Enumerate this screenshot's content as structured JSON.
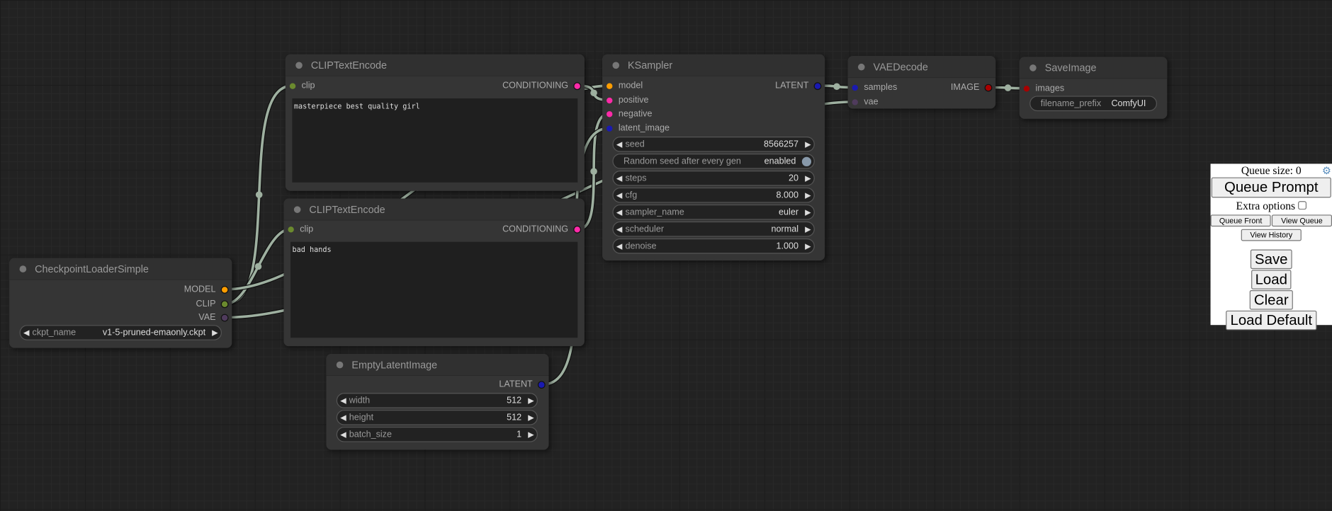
{
  "colors": {
    "clip": "#6b8a2e",
    "conditioning": "#ff2aa8",
    "model": "#ff9d00",
    "vae": "#4f3b5c",
    "latent": "#1a1ab0",
    "image": "#a80000",
    "link": "#9eb0a0"
  },
  "nodes": [
    {
      "id": "checkpoint",
      "title": "CheckpointLoaderSimple",
      "inputs": [],
      "outputs": [
        {
          "name": "MODEL",
          "type": "model"
        },
        {
          "name": "CLIP",
          "type": "clip"
        },
        {
          "name": "VAE",
          "type": "vae"
        }
      ],
      "widgets": [
        {
          "label": "ckpt_name",
          "value": "v1-5-pruned-emaonly.ckpt"
        }
      ]
    },
    {
      "id": "clip-pos",
      "title": "CLIPTextEncode",
      "inputs": [
        {
          "name": "clip",
          "type": "clip"
        }
      ],
      "outputs": [
        {
          "name": "CONDITIONING",
          "type": "conditioning"
        }
      ],
      "text": "masterpiece best quality girl",
      "widgets": []
    },
    {
      "id": "clip-neg",
      "title": "CLIPTextEncode",
      "inputs": [
        {
          "name": "clip",
          "type": "clip"
        }
      ],
      "outputs": [
        {
          "name": "CONDITIONING",
          "type": "conditioning"
        }
      ],
      "text": "bad hands",
      "widgets": []
    },
    {
      "id": "empty-latent",
      "title": "EmptyLatentImage",
      "inputs": [],
      "outputs": [
        {
          "name": "LATENT",
          "type": "latent"
        }
      ],
      "widgets": [
        {
          "label": "width",
          "value": "512"
        },
        {
          "label": "height",
          "value": "512"
        },
        {
          "label": "batch_size",
          "value": "1"
        }
      ]
    },
    {
      "id": "ksampler",
      "title": "KSampler",
      "inputs": [
        {
          "name": "model",
          "type": "model"
        },
        {
          "name": "positive",
          "type": "conditioning"
        },
        {
          "name": "negative",
          "type": "conditioning"
        },
        {
          "name": "latent_image",
          "type": "latent"
        }
      ],
      "outputs": [
        {
          "name": "LATENT",
          "type": "latent"
        }
      ],
      "widgets": [
        {
          "label": "seed",
          "value": "8566257"
        },
        {
          "label": "Random seed after every gen",
          "value": "enabled",
          "toggle": true
        },
        {
          "label": "steps",
          "value": "20"
        },
        {
          "label": "cfg",
          "value": "8.000"
        },
        {
          "label": "sampler_name",
          "value": "euler"
        },
        {
          "label": "scheduler",
          "value": "normal"
        },
        {
          "label": "denoise",
          "value": "1.000"
        }
      ]
    },
    {
      "id": "vae-decode",
      "title": "VAEDecode",
      "inputs": [
        {
          "name": "samples",
          "type": "latent"
        },
        {
          "name": "vae",
          "type": "vae"
        }
      ],
      "outputs": [
        {
          "name": "IMAGE",
          "type": "image"
        }
      ],
      "widgets": []
    },
    {
      "id": "save-image",
      "title": "SaveImage",
      "inputs": [
        {
          "name": "images",
          "type": "image"
        }
      ],
      "outputs": [],
      "widgets": [
        {
          "label": "filename_prefix",
          "value": "ComfyUI",
          "text": true
        }
      ]
    }
  ],
  "panel": {
    "queue_size_label": "Queue size: 0",
    "queue_prompt": "Queue Prompt",
    "extra_options": "Extra options",
    "queue_front": "Queue Front",
    "view_queue": "View Queue",
    "view_history": "View History",
    "save": "Save",
    "load": "Load",
    "clear": "Clear",
    "load_default": "Load Default",
    "settings_icon": "gear-icon"
  }
}
